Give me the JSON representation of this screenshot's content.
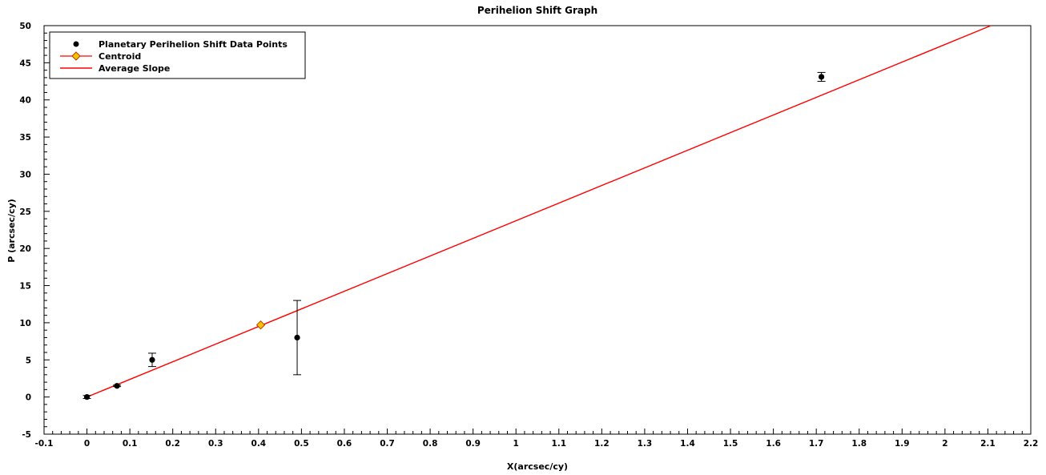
{
  "chart_data": {
    "type": "scatter",
    "title": "Perihelion Shift Graph",
    "xlabel": "X(arcsec/cy)",
    "ylabel": "P (arcsec/cy)",
    "xlim": [
      -0.1,
      2.2
    ],
    "ylim": [
      -5,
      50
    ],
    "x_ticks": [
      "-0.1",
      "0",
      "0.1",
      "0.2",
      "0.3",
      "0.4",
      "0.5",
      "0.6",
      "0.7",
      "0.8",
      "0.9",
      "1",
      "1.1",
      "1.2",
      "1.3",
      "1.4",
      "1.5",
      "1.6",
      "1.7",
      "1.8",
      "1.9",
      "2",
      "2.1",
      "2.2"
    ],
    "y_ticks": [
      "-5",
      "0",
      "5",
      "10",
      "15",
      "20",
      "25",
      "30",
      "35",
      "40",
      "45",
      "50"
    ],
    "grid": false,
    "legend_position": "top-left",
    "series": [
      {
        "name": "Planetary Perihelion Shift Data Points",
        "kind": "points",
        "color": "#000000",
        "points": [
          {
            "x": 0.0,
            "y": 0.0,
            "err": 0.2
          },
          {
            "x": 0.07,
            "y": 1.5,
            "err": 0.1
          },
          {
            "x": 0.152,
            "y": 5.0,
            "err": 0.9
          },
          {
            "x": 0.49,
            "y": 8.0,
            "err": 5.0
          },
          {
            "x": 1.712,
            "y": 43.1,
            "err": 0.6
          }
        ]
      },
      {
        "name": "Centroid",
        "kind": "marker",
        "color": "#f5c400",
        "edge_color": "#b83a00",
        "points": [
          {
            "x": 0.405,
            "y": 9.7
          }
        ]
      },
      {
        "name": "Average Slope",
        "kind": "line",
        "color": "#ff0000",
        "points": [
          {
            "x": 0.0,
            "y": 0.0
          },
          {
            "x": 2.107,
            "y": 50.0
          }
        ]
      }
    ]
  }
}
